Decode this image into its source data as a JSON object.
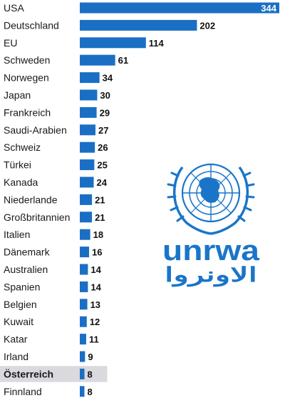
{
  "chart_data": {
    "type": "bar",
    "orientation": "horizontal",
    "categories": [
      "USA",
      "Deutschland",
      "EU",
      "Schweden",
      "Norwegen",
      "Japan",
      "Frankreich",
      "Saudi-Arabien",
      "Schweiz",
      "Türkei",
      "Kanada",
      "Niederlande",
      "Großbritannien",
      "Italien",
      "Dänemark",
      "Australien",
      "Spanien",
      "Belgien",
      "Kuwait",
      "Katar",
      "Irland",
      "Österreich",
      "Finnland"
    ],
    "values": [
      344,
      202,
      114,
      61,
      34,
      30,
      29,
      27,
      26,
      25,
      24,
      21,
      21,
      18,
      16,
      14,
      14,
      13,
      12,
      11,
      9,
      8,
      8
    ],
    "highlighted_category": "Österreich",
    "title": "",
    "xlabel": "",
    "ylabel": "",
    "grid": false,
    "bar_color": "#1a6fc4",
    "highlight_color": "#d9d9de"
  },
  "logo": {
    "name": "unrwa-logo",
    "latin_text": "unrwa",
    "arabic_text": "الاونروا",
    "color": "#1a75c9"
  }
}
